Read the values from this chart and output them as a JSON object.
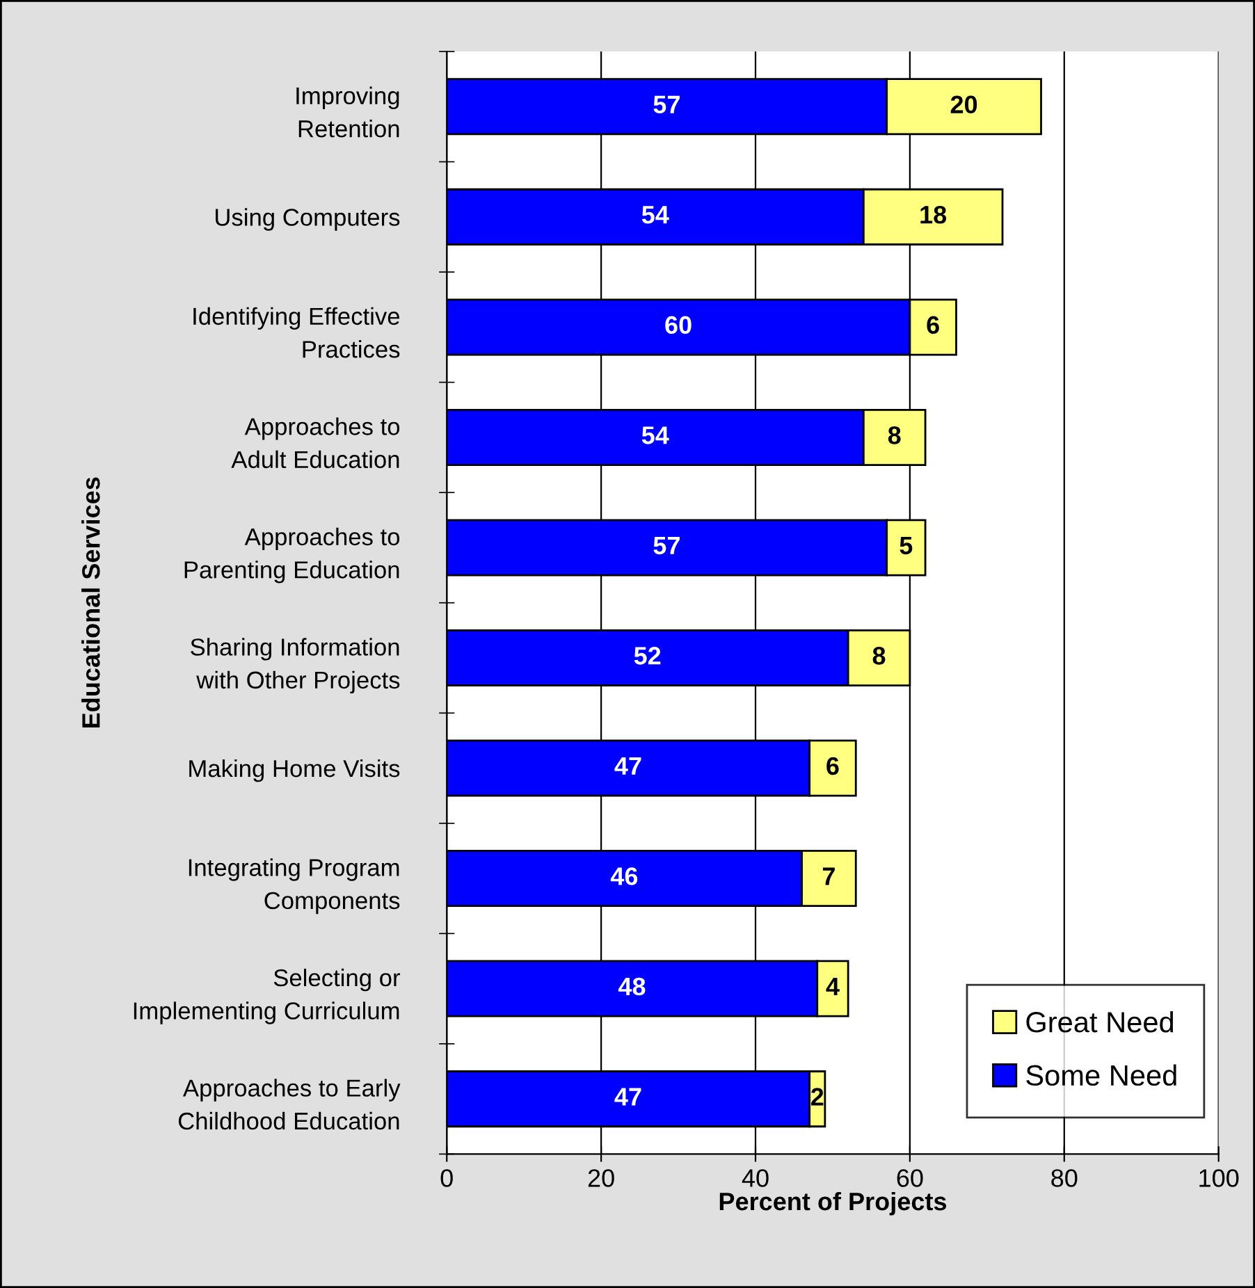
{
  "chart_data": {
    "type": "bar",
    "orientation": "horizontal",
    "stacked": true,
    "ylabel": "Educational Services",
    "xlabel": "Percent of Projects",
    "categories": [
      "Improving\nRetention",
      "Using Computers",
      "Identifying Effective\nPractices",
      "Approaches to\nAdult Education",
      "Approaches to\nParenting Education",
      "Sharing Information\nwith Other Projects",
      "Making Home Visits",
      "Integrating Program\nComponents",
      "Selecting or\nImplementing Curriculum",
      "Approaches to Early\nChildhood Education"
    ],
    "series": [
      {
        "name": "Some Need",
        "color": "#0000ff",
        "values": [
          57,
          54,
          60,
          54,
          57,
          52,
          47,
          46,
          48,
          47
        ]
      },
      {
        "name": "Great Need",
        "color": "#ffff80",
        "values": [
          20,
          18,
          6,
          8,
          5,
          8,
          6,
          7,
          4,
          2
        ]
      }
    ],
    "xlim": [
      0,
      100
    ],
    "xticks": [
      0,
      20,
      40,
      60,
      80,
      100
    ],
    "grid": "x",
    "legend": "bottom right",
    "data_labels": true
  }
}
